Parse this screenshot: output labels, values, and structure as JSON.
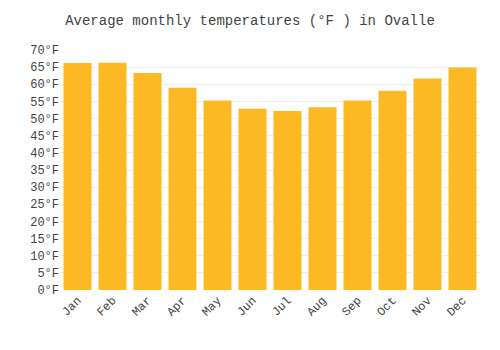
{
  "chart_data": {
    "type": "bar",
    "title": "Average monthly temperatures (°F ) in Ovalle",
    "categories": [
      "Jan",
      "Feb",
      "Mar",
      "Apr",
      "May",
      "Jun",
      "Jul",
      "Aug",
      "Sep",
      "Oct",
      "Nov",
      "Dec"
    ],
    "values": [
      66.2,
      66.3,
      63.3,
      59.0,
      55.3,
      52.9,
      52.2,
      53.3,
      55.3,
      58.1,
      61.7,
      64.9
    ],
    "color": "#FDB924",
    "ylim": [
      0,
      70
    ],
    "yticks": [
      {
        "value": 0,
        "label": "0°F"
      },
      {
        "value": 5,
        "label": "5°F"
      },
      {
        "value": 10,
        "label": "10°F"
      },
      {
        "value": 15,
        "label": "15°F"
      },
      {
        "value": 20,
        "label": "20°F"
      },
      {
        "value": 25,
        "label": "25°F"
      },
      {
        "value": 30,
        "label": "30°F"
      },
      {
        "value": 35,
        "label": "35°F"
      },
      {
        "value": 40,
        "label": "40°F"
      },
      {
        "value": 45,
        "label": "45°F"
      },
      {
        "value": 50,
        "label": "50°F"
      },
      {
        "value": 55,
        "label": "55°F"
      },
      {
        "value": 60,
        "label": "60°F"
      },
      {
        "value": 65,
        "label": "65°F"
      },
      {
        "value": 70,
        "label": "70°F"
      }
    ],
    "grid": true
  }
}
